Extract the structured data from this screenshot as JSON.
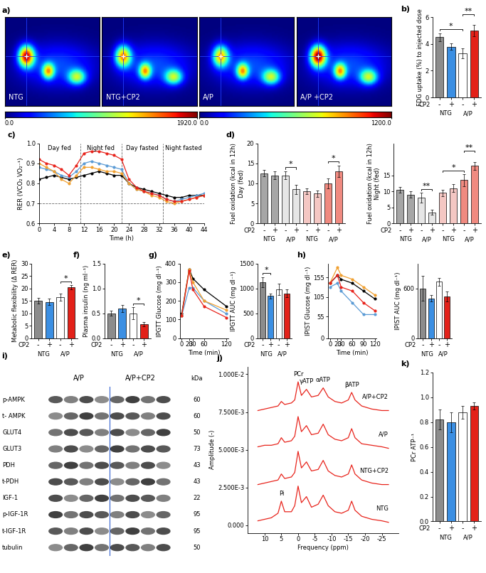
{
  "chart_data": [
    {
      "type": "bar",
      "panel": "b)",
      "ylabel": "FDG uptake (%) to injected dose",
      "categories": [
        "-",
        "+",
        "-",
        "+"
      ],
      "groups": [
        "NTG",
        "A/P"
      ],
      "row_label": "CP2",
      "values": [
        4.5,
        3.8,
        3.3,
        5.0
      ],
      "errors": [
        0.3,
        0.25,
        0.35,
        0.4
      ],
      "colors": [
        "#8c8c8c",
        "#3b8fe3",
        "#ffffff",
        "#e32119"
      ],
      "ylim": [
        0,
        6
      ],
      "yticks": [
        0,
        2,
        4,
        6
      ],
      "significance": [
        {
          "bars": [
            0,
            2
          ],
          "label": "*"
        },
        {
          "bars": [
            2,
            3
          ],
          "label": "**"
        }
      ]
    },
    {
      "type": "line",
      "panel": "c)",
      "ylabel": "RER (VCO₂ VO₂⁻¹)",
      "xlabel": "Time (h)",
      "x": [
        0,
        2,
        4,
        6,
        8,
        10,
        12,
        14,
        16,
        18,
        20,
        22,
        24,
        26,
        28,
        30,
        32,
        34,
        36,
        38,
        40,
        42,
        44
      ],
      "marker": "circle",
      "series": [
        {
          "color": "#000000",
          "values": [
            0.82,
            0.83,
            0.84,
            0.83,
            0.82,
            0.83,
            0.84,
            0.85,
            0.86,
            0.85,
            0.84,
            0.84,
            0.8,
            0.78,
            0.77,
            0.76,
            0.75,
            0.74,
            0.73,
            0.73,
            0.74,
            0.74,
            0.74
          ]
        },
        {
          "color": "#5b9bd5",
          "values": [
            0.88,
            0.87,
            0.86,
            0.84,
            0.83,
            0.86,
            0.9,
            0.91,
            0.9,
            0.89,
            0.88,
            0.87,
            0.8,
            0.77,
            0.76,
            0.75,
            0.74,
            0.72,
            0.71,
            0.72,
            0.73,
            0.74,
            0.75
          ]
        },
        {
          "color": "#f0a030",
          "values": [
            0.9,
            0.88,
            0.86,
            0.82,
            0.8,
            0.84,
            0.88,
            0.88,
            0.87,
            0.86,
            0.86,
            0.85,
            0.8,
            0.77,
            0.76,
            0.74,
            0.73,
            0.71,
            0.7,
            0.71,
            0.72,
            0.73,
            0.74
          ]
        },
        {
          "color": "#e8231b",
          "values": [
            0.92,
            0.9,
            0.89,
            0.87,
            0.84,
            0.89,
            0.95,
            0.96,
            0.96,
            0.95,
            0.94,
            0.92,
            0.82,
            0.78,
            0.76,
            0.75,
            0.74,
            0.72,
            0.71,
            0.71,
            0.72,
            0.73,
            0.74
          ]
        }
      ],
      "vlines": [
        11,
        22,
        33
      ],
      "hline": 0.7,
      "annotations": [
        {
          "text": "Day fed",
          "x": 5.5
        },
        {
          "text": "Night fed",
          "x": 16.5
        },
        {
          "text": "Day fasted",
          "x": 27.5
        },
        {
          "text": "Night fasted",
          "x": 38.5
        }
      ],
      "xlim": [
        0,
        44
      ],
      "xticks": [
        0,
        4,
        8,
        12,
        16,
        20,
        24,
        28,
        32,
        36,
        40,
        44
      ],
      "ylim": [
        0.6,
        1.0
      ],
      "yticks": [
        0.6,
        0.7,
        0.8,
        0.9,
        1.0
      ]
    },
    {
      "type": "bar",
      "panel": "d)",
      "ylabel": "Fuel oxidation (kcal in 12h)\nDay (fed)",
      "categories": [
        "-",
        "+",
        "-",
        "+",
        "-",
        "+",
        "-",
        "+"
      ],
      "groups": [
        "NTG",
        "A/P",
        "NTG",
        "A/P"
      ],
      "row_label": "CP2",
      "values": [
        12.5,
        12.0,
        12.0,
        8.5,
        8.0,
        7.5,
        10.0,
        13.0
      ],
      "errors": [
        0.8,
        1.0,
        1.0,
        1.2,
        0.7,
        0.8,
        1.2,
        1.5
      ],
      "colors": [
        "#a6a6a6",
        "#a6a6a6",
        "#e6e6e6",
        "#e6e6e6",
        "#f4c7c3",
        "#f4c7c3",
        "#f08a80",
        "#f08a80"
      ],
      "ylim": [
        0,
        20
      ],
      "yticks": [
        0,
        5,
        10,
        15,
        20
      ],
      "significance": [
        {
          "bars": [
            2,
            3
          ],
          "label": "*"
        },
        {
          "bars": [
            6,
            7
          ],
          "label": "*"
        }
      ]
    },
    {
      "type": "bar",
      "ylabel": "Fuel oxidation (kcal in 12h)\nNight (fed)",
      "categories": [
        "-",
        "+",
        "-",
        "+",
        "-",
        "+",
        "-",
        "+"
      ],
      "groups": [
        "NTG",
        "A/P",
        "NTG",
        "A/P"
      ],
      "row_label": "CP2",
      "values": [
        10.5,
        9.0,
        8.0,
        3.5,
        9.5,
        11.0,
        13.5,
        18.0
      ],
      "errors": [
        0.8,
        1.0,
        1.5,
        0.7,
        1.0,
        1.2,
        1.8,
        1.2
      ],
      "colors": [
        "#a6a6a6",
        "#a6a6a6",
        "#e6e6e6",
        "#e6e6e6",
        "#f4c7c3",
        "#f4c7c3",
        "#f08a80",
        "#f08a80"
      ],
      "ylim": [
        0,
        25
      ],
      "yticks": [
        0,
        5,
        10,
        15
      ],
      "significance": [
        {
          "bars": [
            2,
            3
          ],
          "label": "**"
        },
        {
          "bars": [
            4,
            6
          ],
          "label": "*"
        },
        {
          "bars": [
            6,
            7
          ],
          "label": "**"
        }
      ]
    },
    {
      "type": "bar",
      "panel": "e)",
      "ylabel": "Metabolic flexibility (Δ RER)",
      "categories": [
        "-",
        "+",
        "-",
        "+"
      ],
      "groups": [
        "NTG",
        "A/P"
      ],
      "row_label": "CP2",
      "values": [
        15,
        14.5,
        16.5,
        20.5
      ],
      "errors": [
        1.2,
        1.3,
        1.5,
        0.8
      ],
      "colors": [
        "#8c8c8c",
        "#3b8fe3",
        "#ffffff",
        "#e32119"
      ],
      "ylim": [
        0,
        30
      ],
      "yticks": [
        0,
        5,
        10,
        15,
        20,
        25,
        30
      ],
      "significance": [
        {
          "bars": [
            2,
            3
          ],
          "label": "*"
        }
      ]
    },
    {
      "type": "bar",
      "panel": "f)",
      "ylabel": "Plasma insulin (ng ml⁻¹)",
      "categories": [
        "-",
        "+",
        "-",
        "+"
      ],
      "groups": [
        "NTG",
        "A/P"
      ],
      "row_label": "CP2",
      "values": [
        0.5,
        0.6,
        0.5,
        0.28
      ],
      "errors": [
        0.05,
        0.07,
        0.12,
        0.04
      ],
      "colors": [
        "#8c8c8c",
        "#3b8fe3",
        "#ffffff",
        "#e32119"
      ],
      "ylim": [
        0,
        1.5
      ],
      "yticks": [
        0.0,
        0.5,
        1.0,
        1.5
      ],
      "significance": [
        {
          "bars": [
            2,
            3
          ],
          "label": "*"
        }
      ]
    },
    {
      "type": "line",
      "panel": "g)",
      "ylabel": "IPGTT Glucose (mg dl⁻¹)",
      "xlabel": "Time (min)",
      "x": [
        0,
        20,
        30,
        60,
        120
      ],
      "marker": "circle",
      "series": [
        {
          "color": "#000000",
          "values": [
            130,
            370,
            320,
            260,
            170
          ]
        },
        {
          "color": "#5b9bd5",
          "values": [
            120,
            270,
            270,
            200,
            130
          ]
        },
        {
          "color": "#f0a030",
          "values": [
            120,
            370,
            300,
            200,
            150
          ]
        },
        {
          "color": "#e8231b",
          "values": [
            120,
            360,
            260,
            170,
            110
          ]
        }
      ],
      "xlim": [
        -5,
        125
      ],
      "xticks": [
        0,
        20,
        30,
        60,
        120
      ],
      "ylim": [
        0,
        400
      ],
      "yticks": [
        0,
        100,
        200,
        300,
        400
      ]
    },
    {
      "type": "bar",
      "ylabel": "IPGTT AUC (mg dl⁻¹)",
      "categories": [
        "-",
        "+",
        "-",
        "+"
      ],
      "groups": [
        "NTG",
        "A/P"
      ],
      "row_label": "CP2",
      "values": [
        1130,
        850,
        980,
        900
      ],
      "errors": [
        100,
        50,
        120,
        80
      ],
      "colors": [
        "#8c8c8c",
        "#3b8fe3",
        "#ffffff",
        "#e32119"
      ],
      "ylim": [
        0,
        1500
      ],
      "yticks": [
        0,
        500,
        1000,
        1500
      ],
      "significance": [
        {
          "bars": [
            0,
            1
          ],
          "label": "*"
        }
      ]
    },
    {
      "type": "line",
      "panel": "h)",
      "ylabel": "IPIST Glucose (mg dl⁻¹)",
      "xlabel": "Time (min)",
      "x": [
        0,
        20,
        30,
        60,
        90,
        120
      ],
      "marker": "circle",
      "series": [
        {
          "color": "#000000",
          "values": [
            140,
            160,
            150,
            140,
            120,
            100
          ]
        },
        {
          "color": "#5b9bd5",
          "values": [
            130,
            140,
            120,
            90,
            60,
            60
          ]
        },
        {
          "color": "#f0a030",
          "values": [
            140,
            180,
            160,
            150,
            130,
            110
          ]
        },
        {
          "color": "#e8231b",
          "values": [
            140,
            160,
            130,
            120,
            90,
            70
          ]
        }
      ],
      "xlim": [
        -5,
        125
      ],
      "xticks": [
        0,
        20,
        30,
        60,
        90,
        120
      ],
      "ylim": [
        0,
        190
      ],
      "yticks": [
        0,
        55,
        105,
        155
      ]
    },
    {
      "type": "bar",
      "ylabel": "IPIST AUC (mg dl⁻¹)",
      "categories": [
        "-",
        "+",
        "-",
        "+"
      ],
      "groups": [
        "NTG",
        "A/P"
      ],
      "row_label": "CP2",
      "values": [
        600,
        480,
        680,
        500
      ],
      "errors": [
        150,
        40,
        50,
        60
      ],
      "colors": [
        "#8c8c8c",
        "#3b8fe3",
        "#ffffff",
        "#e32119"
      ],
      "ylim": [
        0,
        900
      ],
      "yticks": [
        0,
        600
      ]
    },
    {
      "type": "line",
      "panel": "j)",
      "ylabel": "Amplitude (-)",
      "xlabel": "Frequency (ppm)",
      "x": [
        12,
        10,
        8,
        6,
        5,
        4,
        2,
        1,
        0,
        -1,
        -2.5,
        -4,
        -6,
        -7.5,
        -9,
        -11,
        -13,
        -15,
        -16,
        -17,
        -19,
        -22,
        -25,
        -27
      ],
      "series": [
        {
          "name": "NTG",
          "color": "#e8231b",
          "values": [
            0.0003,
            0.0004,
            0.0005,
            0.0008,
            0.0016,
            0.0009,
            0.0009,
            0.0013,
            0.0026,
            0.0015,
            0.0019,
            0.0012,
            0.0014,
            0.002,
            0.0013,
            0.0009,
            0.0008,
            0.001,
            0.0016,
            0.001,
            0.0006,
            0.0004,
            0.0003,
            0.0002
          ]
        },
        {
          "name": "NTG+CP2",
          "color": "#e8231b",
          "values": [
            0.0027,
            0.0028,
            0.0029,
            0.003,
            0.0034,
            0.0031,
            0.0032,
            0.0035,
            0.0049,
            0.0038,
            0.0042,
            0.0036,
            0.0037,
            0.0043,
            0.0036,
            0.0033,
            0.0032,
            0.0034,
            0.004,
            0.0034,
            0.003,
            0.0028,
            0.0027,
            0.0027
          ]
        },
        {
          "name": "A/P",
          "color": "#e8231b",
          "values": [
            0.0052,
            0.0053,
            0.0053,
            0.0054,
            0.0058,
            0.0055,
            0.0056,
            0.0059,
            0.0072,
            0.0062,
            0.0066,
            0.006,
            0.0061,
            0.0067,
            0.006,
            0.0057,
            0.0056,
            0.0058,
            0.0064,
            0.0058,
            0.0054,
            0.0053,
            0.0052,
            0.0051
          ]
        },
        {
          "name": "A/P+CP2",
          "color": "#e8231b",
          "values": [
            0.0076,
            0.0077,
            0.0078,
            0.0079,
            0.0082,
            0.008,
            0.0081,
            0.0083,
            0.0095,
            0.0086,
            0.009,
            0.0085,
            0.0086,
            0.0091,
            0.0085,
            0.0082,
            0.0081,
            0.0083,
            0.0088,
            0.0083,
            0.0079,
            0.0077,
            0.0076,
            0.0076
          ]
        }
      ],
      "annotations": [
        {
          "text": "Pi",
          "x": 5,
          "y": 0.0019
        },
        {
          "text": "PCr",
          "x": 0,
          "y": 0.0098
        },
        {
          "text": "γATP",
          "x": -2.5,
          "y": 0.0093
        },
        {
          "text": "αATP",
          "x": -7.5,
          "y": 0.0094
        },
        {
          "text": "βATP",
          "x": -16,
          "y": 0.0091
        }
      ],
      "xlim": [
        15,
        -30
      ],
      "xticks": [
        10,
        5,
        0,
        -5,
        -10,
        -15,
        -20,
        -25
      ],
      "ylim": [
        -0.0005,
        0.0105
      ],
      "yticks": [
        {
          "value": 0,
          "label": "0.000"
        },
        {
          "value": 0.0025,
          "label": "2.500E-3"
        },
        {
          "value": 0.005,
          "label": "5.000E-3"
        },
        {
          "value": 0.0075,
          "label": "7.500E-3"
        },
        {
          "value": 0.01,
          "label": "1.000E-2"
        }
      ]
    },
    {
      "type": "bar",
      "panel": "k)",
      "ylabel": "PCr ATP⁻¹",
      "categories": [
        "-",
        "+",
        "-",
        "+"
      ],
      "groups": [
        "NTG",
        "A/P"
      ],
      "row_label": "CP2",
      "values": [
        0.82,
        0.8,
        0.88,
        0.93
      ],
      "errors": [
        0.08,
        0.08,
        0.05,
        0.03
      ],
      "colors": [
        "#8c8c8c",
        "#3b8fe3",
        "#ffffff",
        "#e32119"
      ],
      "ylim": [
        0,
        1.2
      ],
      "yticks": [
        0.0,
        0.2,
        0.4,
        0.6,
        0.8,
        1.0,
        1.2
      ]
    }
  ],
  "images": {
    "panel": "a)",
    "labels": [
      "NTG",
      "NTG+CP2",
      "A/P",
      "A/P +CP2"
    ],
    "colorbars": [
      {
        "range": [
          0,
          1920
        ],
        "ticks": [
          {
            "value": 0,
            "label": "0.0"
          },
          {
            "value": 1920,
            "label": "1920.0"
          }
        ]
      },
      {
        "range": [
          0,
          1200
        ],
        "ticks": [
          {
            "value": 0,
            "label": "0.0"
          },
          {
            "value": 1200,
            "label": "1200.0"
          }
        ]
      }
    ]
  },
  "blot": {
    "panel": "i)",
    "groups": [
      "A/P",
      "A/P+CP2"
    ],
    "unit": "kDa",
    "rows": [
      {
        "name": "p-AMPK",
        "kda": 60
      },
      {
        "name": "t- AMPK",
        "kda": 60
      },
      {
        "name": "GLUT4",
        "kda": 50
      },
      {
        "name": "GLUT3",
        "kda": 73
      },
      {
        "name": "PDH",
        "kda": 43
      },
      {
        "name": "t-PDH",
        "kda": 43
      },
      {
        "name": "IGF-1",
        "kda": 22
      },
      {
        "name": "p-IGF-1R",
        "kda": 95
      },
      {
        "name": "t-IGF-1R",
        "kda": 95
      },
      {
        "name": "tubulin",
        "kda": 50
      }
    ]
  }
}
